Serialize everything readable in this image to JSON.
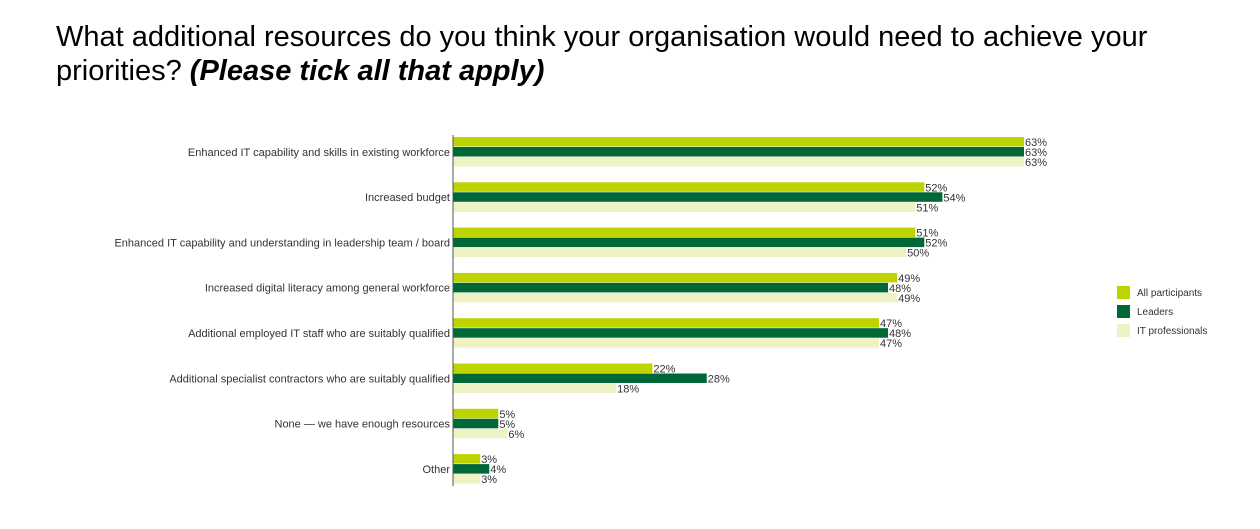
{
  "title": {
    "main": "What additional resources do you think your organisation would need to achieve your priorities? ",
    "emphasis": "(Please tick all that apply)"
  },
  "chart_data": {
    "type": "bar",
    "orientation": "horizontal",
    "categories": [
      "Enhanced IT capability and skills in existing workforce",
      "Increased budget",
      "Enhanced IT capability and understanding in leadership team / board",
      "Increased digital literacy among general workforce",
      "Additional employed IT staff who are suitably qualified",
      "Additional specialist contractors who are suitably qualified",
      "None — we have enough resources",
      "Other"
    ],
    "series": [
      {
        "name": "All participants",
        "color": "#bdd400",
        "values": [
          63,
          52,
          51,
          49,
          47,
          22,
          5,
          3
        ]
      },
      {
        "name": "Leaders",
        "color": "#006837",
        "values": [
          63,
          54,
          52,
          48,
          48,
          28,
          5,
          4
        ]
      },
      {
        "name": "IT professionals",
        "color": "#eff2c4",
        "values": [
          63,
          51,
          50,
          49,
          47,
          18,
          6,
          3
        ]
      }
    ],
    "value_suffix": "%",
    "xlim": [
      0,
      63
    ],
    "legend_position": "right",
    "grid": false
  }
}
